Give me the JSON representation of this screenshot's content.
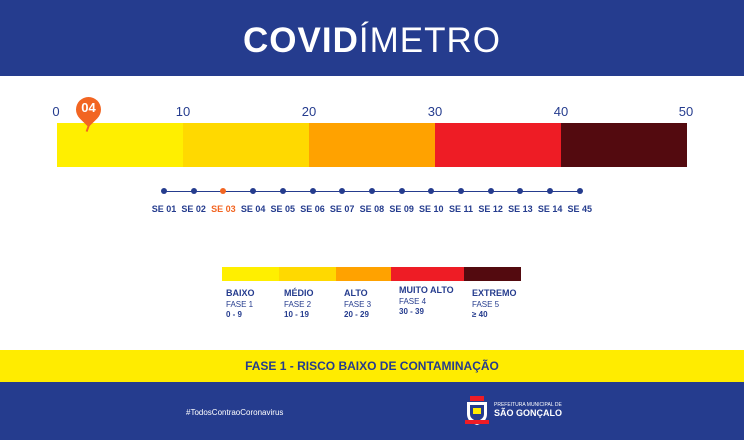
{
  "header": {
    "title_bold": "COVID",
    "title_light": "ÍMETRO"
  },
  "scale": {
    "ticks": [
      "0",
      "10",
      "20",
      "30",
      "40",
      "50"
    ],
    "marker_value": "04"
  },
  "bar_colors": [
    "#ffef00",
    "#ffd900",
    "#ffa200",
    "#ee1c25",
    "#530a0f"
  ],
  "weeks": {
    "labels": [
      "SE 01",
      "SE 02",
      "SE 03",
      "SE 04",
      "SE 05",
      "SE 06",
      "SE 07",
      "SE 08",
      "SE 09",
      "SE 10",
      "SE 11",
      "SE 12",
      "SE 13",
      "SE 14",
      "SE 45"
    ],
    "current": "SE 03"
  },
  "legend": [
    {
      "name": "BAIXO",
      "phase": "FASE 1",
      "range": "0 - 9"
    },
    {
      "name": "MÉDIO",
      "phase": "FASE 2",
      "range": "10 - 19"
    },
    {
      "name": "ALTO",
      "phase": "FASE 3",
      "range": "20 - 29"
    },
    {
      "name": "MUITO ALTO",
      "phase": "FASE 4",
      "range": "30 - 39"
    },
    {
      "name": "EXTREMO",
      "phase": "FASE 5",
      "range": "≥ 40"
    }
  ],
  "status": {
    "text": "FASE 1 - RISCO BAIXO DE CONTAMINAÇÃO"
  },
  "footer": {
    "hashtag": "#TodosContraoCoronavirus",
    "logo_small": "PREFEITURA MUNICIPAL DE",
    "logo_big": "SÃO GONÇALO"
  },
  "colors": {
    "brand_blue": "#253c8e",
    "accent_orange": "#f26522",
    "band_yellow": "#ffec00"
  }
}
